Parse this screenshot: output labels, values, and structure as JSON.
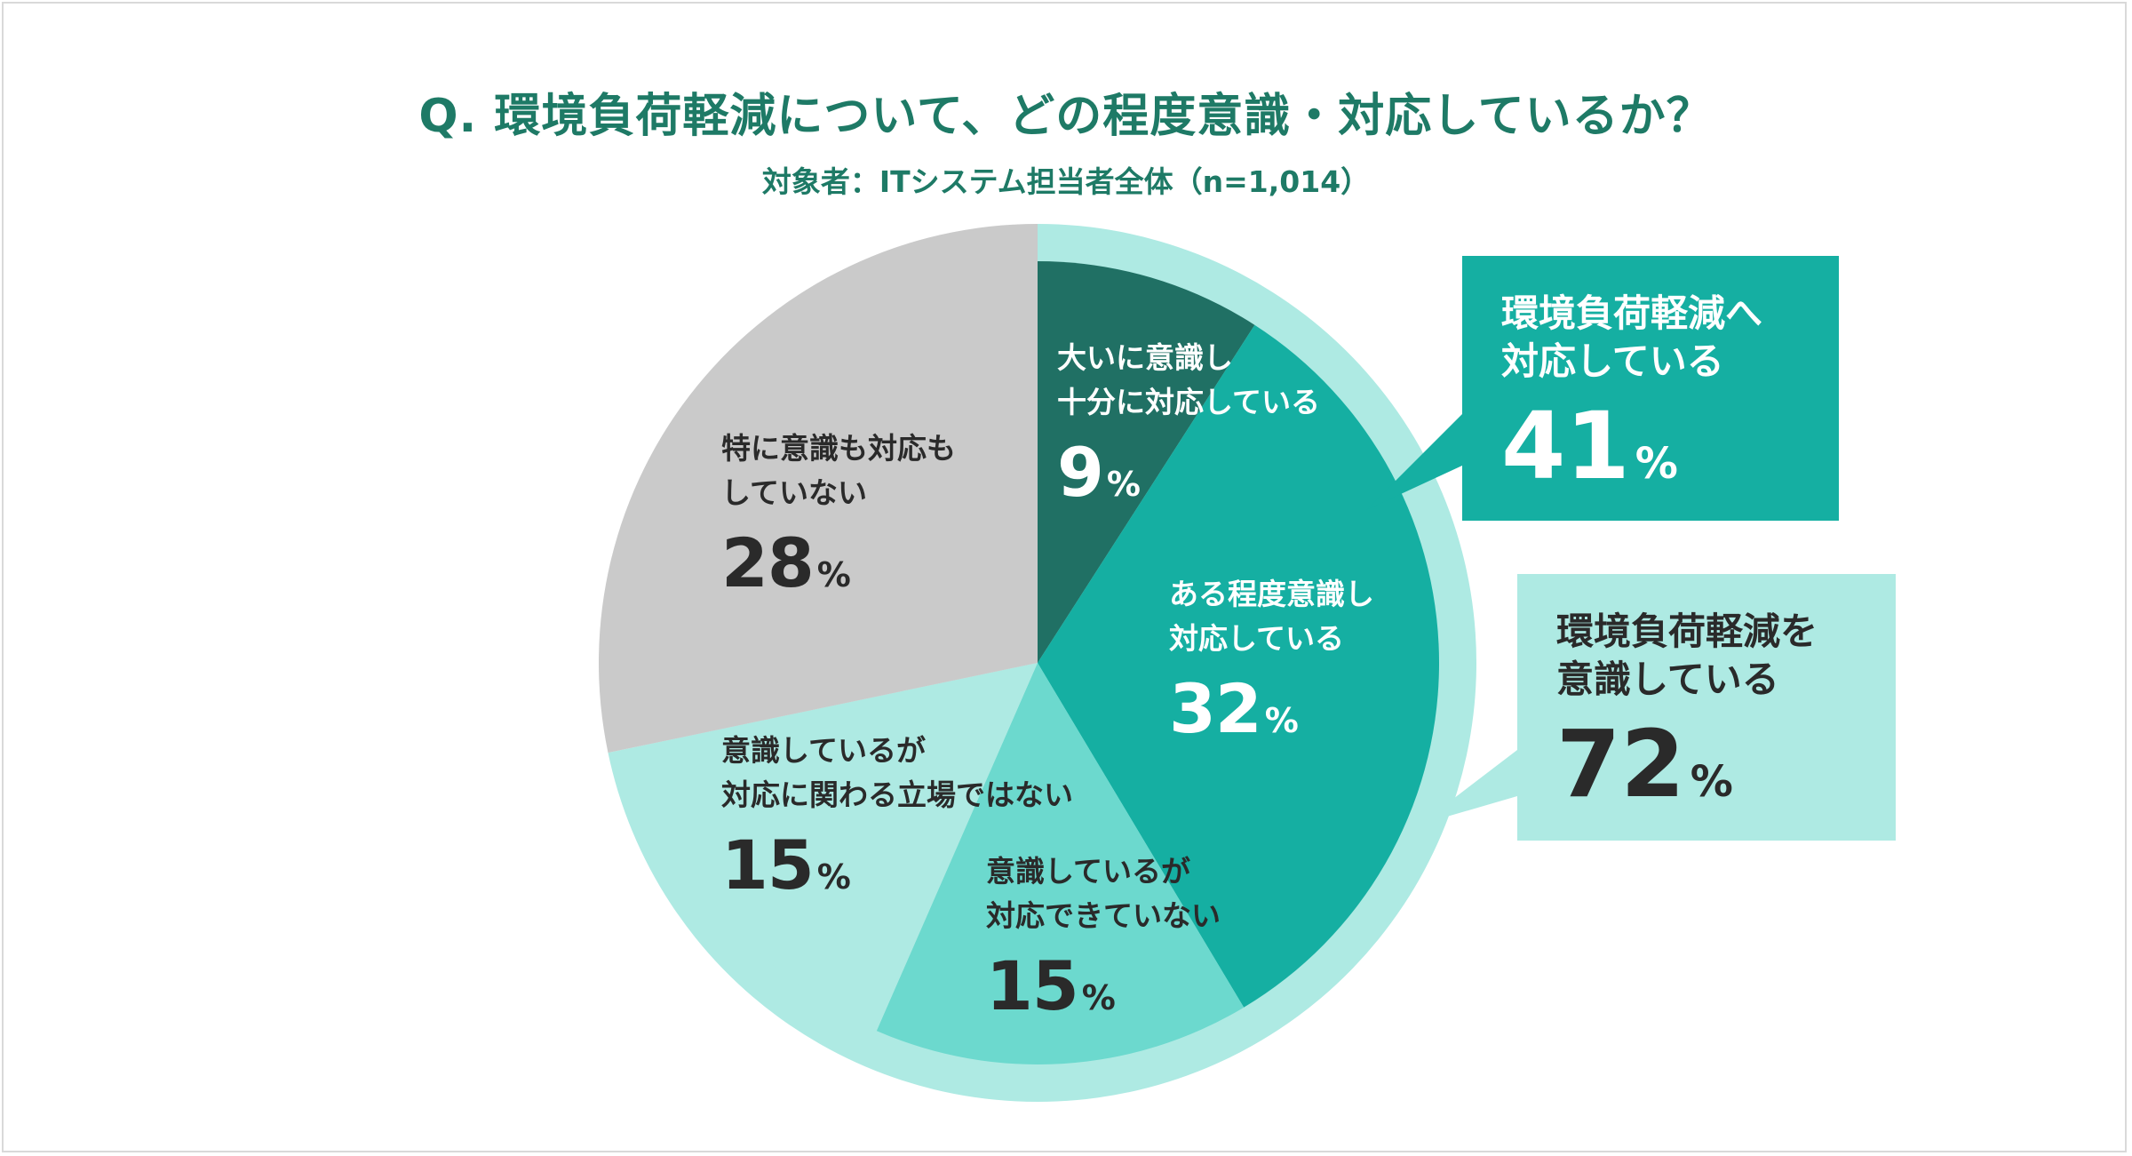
{
  "title": "Q. 環境負荷軽減について、どの程度意識・対応しているか？",
  "subtitle": "対象者：ITシステム担当者全体（n=1,014）",
  "colors": {
    "title": "#1e7a66",
    "strong": "#207064",
    "medium": "#15afa2",
    "light_teal": "#6cd9ce",
    "pale_teal": "#aeeae3",
    "gray": "#cacaca",
    "outer_ring": "#aeeae3"
  },
  "chart_data": {
    "type": "pie",
    "unit": "%",
    "start": "12 o'clock, clockwise",
    "slices": [
      {
        "label_lines": [
          "大いに意識し",
          "十分に対応している"
        ],
        "value": 9,
        "display": "9",
        "color": "#207064"
      },
      {
        "label_lines": [
          "ある程度意識し",
          "対応している"
        ],
        "value": 32,
        "display": "32",
        "color": "#15afa2"
      },
      {
        "label_lines": [
          "意識しているが",
          "対応できていない"
        ],
        "value": 15,
        "display": "15",
        "color": "#6cd9ce"
      },
      {
        "label_lines": [
          "意識しているが",
          "対応に関わる立場ではない"
        ],
        "value": 15,
        "display": "15",
        "color": "#aeeae3"
      },
      {
        "label_lines": [
          "特に意識も対応も",
          "していない"
        ],
        "value": 28,
        "display": "28",
        "color": "#cacaca"
      }
    ],
    "groups": [
      {
        "label_lines": [
          "環境負荷軽減へ",
          "対応している"
        ],
        "value": 41,
        "display": "41",
        "member_slices": [
          0,
          1
        ],
        "style": "filled-teal"
      },
      {
        "label_lines": [
          "環境負荷軽減を",
          "意識している"
        ],
        "value": 72,
        "display": "72",
        "member_slices": [
          0,
          1,
          2,
          3
        ],
        "style": "outer-ring"
      }
    ],
    "percent_sign": "%"
  }
}
